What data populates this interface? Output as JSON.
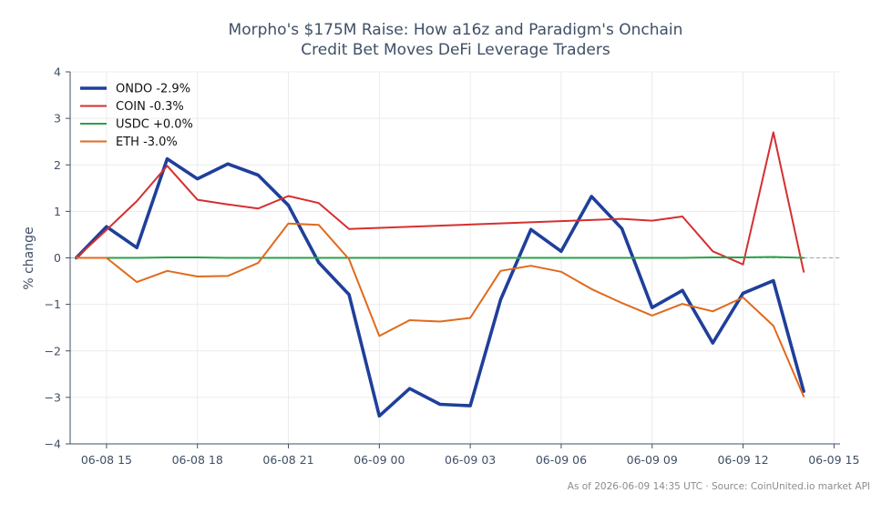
{
  "chart_data": {
    "type": "line",
    "title_lines": [
      "Morpho's $175M Raise: How a16z and Paradigm's Onchain",
      "Credit Bet Moves DeFi Leverage Traders"
    ],
    "ylabel": "% change",
    "xlabel": "",
    "ylim": [
      -4,
      4
    ],
    "yticks": [
      4,
      3,
      2,
      1,
      0,
      -1,
      -2,
      -3,
      -4
    ],
    "ytick_labels": [
      "4",
      "3",
      "2",
      "1",
      "0",
      "−1",
      "−2",
      "−3",
      "−4"
    ],
    "xlim": [
      "2026-06-08 13:48",
      "2026-06-09 15:12"
    ],
    "xticks": [
      {
        "t": "2026-06-08 15:00",
        "label": "06-08 15"
      },
      {
        "t": "2026-06-08 18:00",
        "label": "06-08 18"
      },
      {
        "t": "2026-06-08 21:00",
        "label": "06-08 21"
      },
      {
        "t": "2026-06-09 00:00",
        "label": "06-09 00"
      },
      {
        "t": "2026-06-09 03:00",
        "label": "06-09 03"
      },
      {
        "t": "2026-06-09 06:00",
        "label": "06-09 06"
      },
      {
        "t": "2026-06-09 09:00",
        "label": "06-09 09"
      },
      {
        "t": "2026-06-09 12:00",
        "label": "06-09 12"
      },
      {
        "t": "2026-06-09 15:00",
        "label": "06-09 15"
      }
    ],
    "grid": true,
    "zero_reference_line": true,
    "legend_position": "upper-left",
    "x": [
      "2026-06-08 14:00",
      "2026-06-08 15:00",
      "2026-06-08 16:00",
      "2026-06-08 17:00",
      "2026-06-08 18:00",
      "2026-06-08 19:00",
      "2026-06-08 20:00",
      "2026-06-08 21:00",
      "2026-06-08 22:00",
      "2026-06-08 23:00",
      "2026-06-09 00:00",
      "2026-06-09 01:00",
      "2026-06-09 02:00",
      "2026-06-09 03:00",
      "2026-06-09 04:00",
      "2026-06-09 05:00",
      "2026-06-09 06:00",
      "2026-06-09 07:00",
      "2026-06-09 08:00",
      "2026-06-09 09:00",
      "2026-06-09 10:00",
      "2026-06-09 11:00",
      "2026-06-09 12:00",
      "2026-06-09 13:00",
      "2026-06-09 14:00"
    ],
    "series": [
      {
        "name": "ONDO -2.9%",
        "color": "#1f3f9a",
        "emphasis": "bold",
        "values": [
          0.0,
          0.67,
          0.22,
          2.13,
          1.7,
          2.02,
          1.78,
          1.13,
          -0.1,
          -0.79,
          -3.4,
          -2.81,
          -3.15,
          -3.18,
          -0.9,
          0.61,
          0.14,
          1.32,
          0.63,
          -1.07,
          -0.7,
          -1.83,
          -0.76,
          -0.49,
          -2.87
        ]
      },
      {
        "name": "COIN -0.3%",
        "color": "#d62f2f",
        "values": [
          0.0,
          0.6,
          1.22,
          1.98,
          1.25,
          1.15,
          1.06,
          1.33,
          1.18,
          0.62,
          null,
          null,
          null,
          null,
          null,
          null,
          null,
          null,
          0.84,
          0.8,
          0.89,
          0.14,
          -0.14,
          2.7,
          -0.3
        ]
      },
      {
        "name": "USDC +0.0%",
        "color": "#2ca04a",
        "values": [
          0.0,
          0.0,
          0.0,
          0.01,
          0.01,
          0.0,
          0.0,
          0.0,
          0.0,
          0.0,
          0.0,
          0.0,
          0.0,
          0.0,
          0.0,
          0.0,
          0.0,
          0.0,
          0.0,
          0.0,
          0.0,
          0.01,
          0.01,
          0.02,
          0.0
        ]
      },
      {
        "name": "ETH -3.0%",
        "color": "#e06a1c",
        "values": [
          0.0,
          0.0,
          -0.52,
          -0.28,
          -0.4,
          -0.39,
          -0.11,
          0.74,
          0.71,
          -0.03,
          -1.68,
          -1.34,
          -1.37,
          -1.29,
          -0.28,
          -0.17,
          -0.3,
          -0.67,
          -0.97,
          -1.24,
          -0.99,
          -1.15,
          -0.85,
          -1.46,
          -2.98
        ]
      }
    ]
  },
  "footer": "As of 2026-06-09 14:35 UTC · Source: CoinUnited.io market API"
}
